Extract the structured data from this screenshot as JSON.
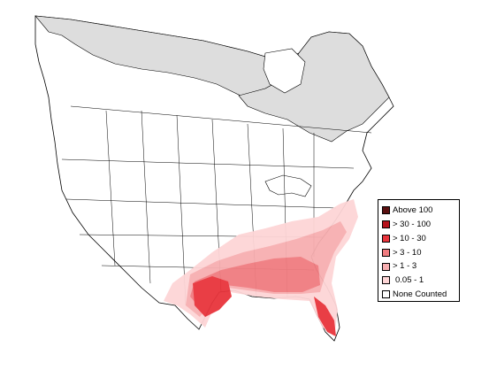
{
  "map": {
    "region": "North America",
    "colors": {
      "background": "#ffffff",
      "land": "#ffffff",
      "outline": "#000000",
      "no_data_region": "#dddddd"
    }
  },
  "legend": {
    "items": [
      {
        "label": "Above 100",
        "color": "#5a1010"
      },
      {
        "label": "> 30 - 100",
        "color": "#b5121b"
      },
      {
        "label": "> 10 - 30",
        "color": "#e8343c"
      },
      {
        "label": "> 3 - 10",
        "color": "#f07c80"
      },
      {
        "label": "> 1 - 3",
        "color": "#f7aeb0"
      },
      {
        "label": "0.05 - 1",
        "color": "#fdd5d6"
      },
      {
        "label": "None Counted",
        "color": "#ffffff"
      }
    ]
  }
}
